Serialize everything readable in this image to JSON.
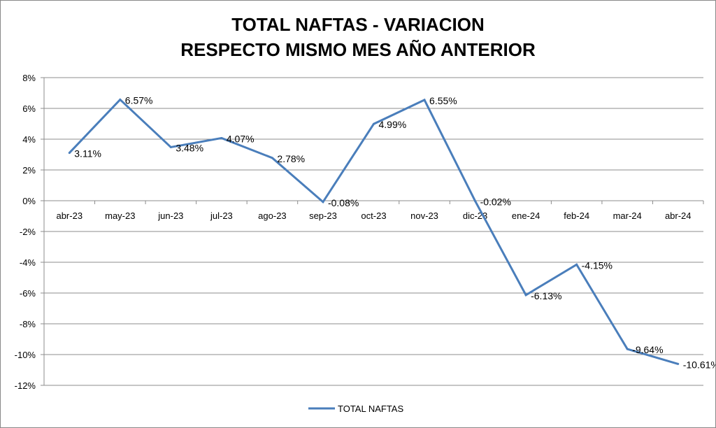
{
  "chart_data": {
    "type": "line",
    "title_lines": [
      "TOTAL NAFTAS - VARIACION",
      "RESPECTO MISMO MES AÑO ANTERIOR"
    ],
    "categories": [
      "abr-23",
      "may-23",
      "jun-23",
      "jul-23",
      "ago-23",
      "sep-23",
      "oct-23",
      "nov-23",
      "dic-23",
      "ene-24",
      "feb-24",
      "mar-24",
      "abr-24"
    ],
    "series": [
      {
        "name": "TOTAL NAFTAS",
        "color": "#4a7ebb",
        "values": [
          3.11,
          6.57,
          3.48,
          4.07,
          2.78,
          -0.08,
          4.99,
          6.55,
          -0.02,
          -6.13,
          -4.15,
          -9.64,
          -10.61
        ],
        "labels": [
          "3.11%",
          "6.57%",
          "3.48%",
          "4.07%",
          "2.78%",
          "-0.08%",
          "4.99%",
          "6.55%",
          "-0.02%",
          "-6.13%",
          "-4.15%",
          "-9.64%",
          "-10.61%"
        ]
      }
    ],
    "ylim": [
      -12,
      8
    ],
    "yticks": [
      8,
      6,
      4,
      2,
      0,
      -2,
      -4,
      -6,
      -8,
      -10,
      -12
    ],
    "ytick_labels": [
      "8%",
      "6%",
      "4%",
      "2%",
      "0%",
      "-2%",
      "-4%",
      "-6%",
      "-8%",
      "-10%",
      "-12%"
    ],
    "grid": true,
    "legend": "bottom"
  }
}
